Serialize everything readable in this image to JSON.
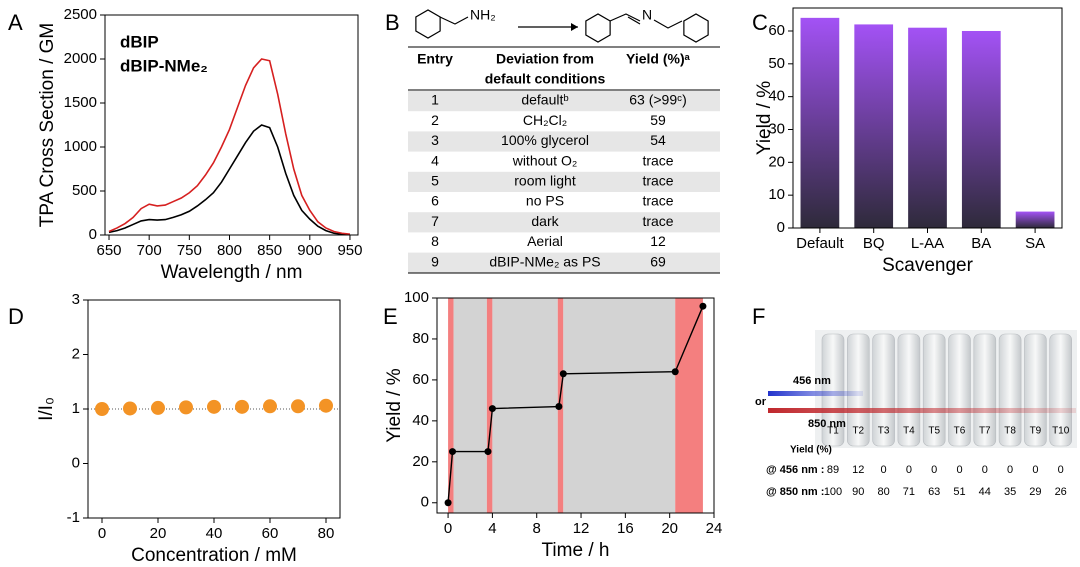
{
  "chart_data": [
    {
      "panel": "A",
      "type": "line",
      "x": [
        650,
        660,
        670,
        680,
        690,
        700,
        710,
        720,
        730,
        740,
        750,
        760,
        770,
        780,
        790,
        800,
        810,
        820,
        830,
        840,
        850,
        860,
        870,
        880,
        890,
        900,
        910,
        920,
        930,
        940,
        950
      ],
      "series": [
        {
          "name": "dBIP",
          "color": "#000000",
          "values": [
            30,
            50,
            80,
            120,
            160,
            175,
            170,
            175,
            200,
            230,
            270,
            330,
            400,
            480,
            600,
            750,
            900,
            1050,
            1180,
            1250,
            1220,
            1000,
            700,
            450,
            280,
            180,
            100,
            50,
            20,
            10,
            5
          ]
        },
        {
          "name": "dBIP-NMe₂",
          "color": "#d62020",
          "values": [
            40,
            80,
            130,
            200,
            300,
            350,
            330,
            340,
            380,
            420,
            480,
            560,
            680,
            820,
            1000,
            1200,
            1450,
            1700,
            1900,
            2000,
            1980,
            1600,
            1150,
            750,
            450,
            280,
            150,
            80,
            40,
            20,
            10
          ]
        }
      ],
      "xlabel": "Wavelength / nm",
      "ylabel": "TPA Cross Section / GM",
      "xlim": [
        645,
        960
      ],
      "ylim": [
        0,
        2500
      ],
      "xticks": [
        650,
        700,
        750,
        800,
        850,
        900,
        950
      ],
      "yticks": [
        0,
        500,
        1000,
        1500,
        2000,
        2500
      ],
      "legend": "upper left"
    },
    {
      "panel": "C",
      "type": "bar",
      "categories": [
        "Default",
        "BQ",
        "L-AA",
        "BA",
        "SA"
      ],
      "values": [
        64,
        62,
        61,
        60,
        5
      ],
      "color": "#a352f5",
      "xlabel": "Scavenger",
      "ylabel": "Yield / %",
      "ylim": [
        0,
        67
      ],
      "yticks": [
        0,
        10,
        20,
        30,
        40,
        50,
        60
      ]
    },
    {
      "panel": "D",
      "type": "scatter",
      "x": [
        0,
        10,
        20,
        30,
        40,
        50,
        60,
        70,
        80
      ],
      "values": [
        1.0,
        1.01,
        1.02,
        1.03,
        1.04,
        1.04,
        1.05,
        1.05,
        1.06
      ],
      "color": "#f39325",
      "xlabel": "Concentration / mM",
      "ylabel": "I/I₀",
      "xlim": [
        -5,
        85
      ],
      "ylim": [
        -1,
        3
      ],
      "xticks": [
        0,
        20,
        40,
        60,
        80
      ],
      "yticks": [
        -1,
        0,
        1,
        2,
        3
      ],
      "reference_line": 1
    },
    {
      "panel": "E",
      "type": "line",
      "x": [
        0,
        0.4,
        3.6,
        4,
        10,
        10.4,
        20.5,
        23
      ],
      "values": [
        0,
        25,
        25,
        46,
        47,
        63,
        64,
        96
      ],
      "color": "#000000",
      "spans": [
        {
          "range": [
            0,
            0.5
          ],
          "color": "#f47f7f"
        },
        {
          "range": [
            0.5,
            3.5
          ],
          "color": "#d3d3d3"
        },
        {
          "range": [
            3.5,
            4
          ],
          "color": "#f47f7f"
        },
        {
          "range": [
            4,
            9.9
          ],
          "color": "#d3d3d3"
        },
        {
          "range": [
            9.9,
            10.4
          ],
          "color": "#f47f7f"
        },
        {
          "range": [
            10.4,
            20.5
          ],
          "color": "#d3d3d3"
        },
        {
          "range": [
            20.5,
            23
          ],
          "color": "#f47f7f"
        }
      ],
      "xlabel": "Time / h",
      "ylabel": "Yield / %",
      "xlim": [
        -1,
        24
      ],
      "ylim": [
        -5,
        100
      ],
      "xticks": [
        0,
        4,
        8,
        12,
        16,
        20,
        24
      ],
      "yticks": [
        0,
        20,
        40,
        60,
        80,
        100
      ]
    }
  ],
  "table_panel": {
    "panel": "B",
    "scheme": {
      "reactant": "NH₂",
      "product": "N"
    },
    "columns": [
      "Entry",
      [
        "Deviation from",
        "default conditions"
      ],
      "Yield (%)ᵃ"
    ],
    "rows": [
      [
        "1",
        "defaultᵇ",
        "63 (>99ᶜ)"
      ],
      [
        "2",
        "CH₂Cl₂",
        "59"
      ],
      [
        "3",
        "100% glycerol",
        "54"
      ],
      [
        "4",
        "without O₂",
        "trace"
      ],
      [
        "5",
        "room light",
        "trace"
      ],
      [
        "6",
        "no PS",
        "trace"
      ],
      [
        "7",
        "dark",
        "trace"
      ],
      [
        "8",
        "Aerial",
        "12"
      ],
      [
        "9",
        "dBIP-NMe₂ as PS",
        "69"
      ]
    ]
  },
  "photo_panel": {
    "panel": "F",
    "beams": [
      {
        "label": "456 nm",
        "color": "#2233cc"
      },
      {
        "label": "850 nm",
        "color": "#c0282d"
      }
    ],
    "connector": "or",
    "tubes": [
      "T1",
      "T2",
      "T3",
      "T4",
      "T5",
      "T6",
      "T7",
      "T8",
      "T9",
      "T10"
    ],
    "yield_header": "Yield (%)",
    "rows": [
      {
        "label": "@ 456 nm :",
        "color": "#2233cc",
        "values": [
          89,
          12,
          0,
          0,
          0,
          0,
          0,
          0,
          0,
          0
        ]
      },
      {
        "label": "@ 850 nm :",
        "color": "#c0282d",
        "values": [
          100,
          90,
          80,
          71,
          63,
          51,
          44,
          35,
          29,
          26
        ]
      }
    ]
  }
}
